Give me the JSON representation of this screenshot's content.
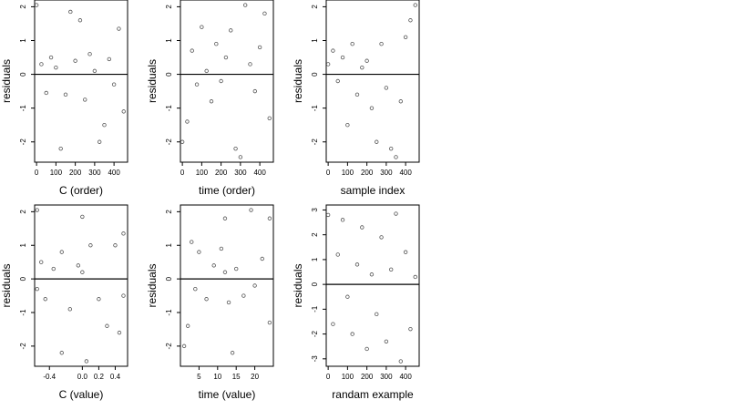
{
  "figure": {
    "background": "#ffffff",
    "point_color": "#555555",
    "zero_line_color": "#000000",
    "point_symbol": "open-circle"
  },
  "chart_data": [
    {
      "type": "scatter",
      "xlabel": "C (order)",
      "ylabel": "residuals",
      "xlim": [
        -10,
        470
      ],
      "ylim": [
        -2.6,
        2.2
      ],
      "xticks": [
        0,
        100,
        200,
        300,
        400
      ],
      "xtick_labels": [
        "0",
        "100",
        "200",
        "300",
        "400"
      ],
      "yticks": [
        -2,
        -1,
        0,
        1,
        2
      ],
      "ytick_labels": [
        "-2",
        "-1",
        "0",
        "1",
        "2"
      ],
      "hline": 0,
      "x": [
        0,
        25,
        50,
        75,
        100,
        125,
        150,
        175,
        200,
        225,
        250,
        275,
        300,
        325,
        350,
        375,
        400,
        425,
        450
      ],
      "y": [
        2.05,
        0.3,
        -0.55,
        0.5,
        0.2,
        -2.2,
        -0.6,
        1.85,
        0.4,
        1.6,
        -0.75,
        0.6,
        0.1,
        -2.0,
        -1.5,
        0.45,
        -0.3,
        1.35,
        -1.1
      ]
    },
    {
      "type": "scatter",
      "xlabel": "time (order)",
      "ylabel": "residuals",
      "xlim": [
        -10,
        470
      ],
      "ylim": [
        -2.6,
        2.2
      ],
      "xticks": [
        0,
        100,
        200,
        300,
        400
      ],
      "xtick_labels": [
        "0",
        "100",
        "200",
        "300",
        "400"
      ],
      "yticks": [
        -2,
        -1,
        0,
        1,
        2
      ],
      "ytick_labels": [
        "-2",
        "-1",
        "0",
        "1",
        "2"
      ],
      "hline": 0,
      "x": [
        0,
        25,
        50,
        75,
        100,
        125,
        150,
        175,
        200,
        225,
        250,
        275,
        300,
        325,
        350,
        375,
        400,
        425,
        450
      ],
      "y": [
        -2.0,
        -1.4,
        0.7,
        -0.3,
        1.4,
        0.1,
        -0.8,
        0.9,
        -0.2,
        0.5,
        1.3,
        -2.2,
        -2.45,
        2.05,
        0.3,
        -0.5,
        0.8,
        1.8,
        -1.3
      ]
    },
    {
      "type": "scatter",
      "xlabel": "sample index",
      "ylabel": "residuals",
      "xlim": [
        -10,
        470
      ],
      "ylim": [
        -2.6,
        2.2
      ],
      "xticks": [
        0,
        100,
        200,
        300,
        400
      ],
      "xtick_labels": [
        "0",
        "100",
        "200",
        "300",
        "400"
      ],
      "yticks": [
        -2,
        -1,
        0,
        1,
        2
      ],
      "ytick_labels": [
        "-2",
        "-1",
        "0",
        "1",
        "2"
      ],
      "hline": 0,
      "x": [
        0,
        25,
        50,
        75,
        100,
        125,
        150,
        175,
        200,
        225,
        250,
        275,
        300,
        325,
        350,
        375,
        400,
        425,
        450
      ],
      "y": [
        0.3,
        0.7,
        -0.2,
        0.5,
        -1.5,
        0.9,
        -0.6,
        0.2,
        0.4,
        -1.0,
        -2.0,
        0.9,
        -0.4,
        -2.2,
        -2.45,
        -0.8,
        1.1,
        1.6,
        2.05
      ]
    },
    {
      "type": "scatter",
      "xlabel": "C (value)",
      "ylabel": "residuals",
      "xlim": [
        -0.58,
        0.55
      ],
      "ylim": [
        -2.6,
        2.2
      ],
      "xticks": [
        -0.4,
        0.0,
        0.2,
        0.4
      ],
      "xtick_labels": [
        "-0.4",
        "0.0",
        "0.2",
        "0.4"
      ],
      "yticks": [
        -2,
        -1,
        0,
        1,
        2
      ],
      "ytick_labels": [
        "-2",
        "-1",
        "0",
        "1",
        "2"
      ],
      "hline": 0,
      "x": [
        -0.55,
        -0.5,
        -0.45,
        -0.35,
        -0.25,
        -0.15,
        -0.05,
        0.0,
        0.05,
        0.1,
        0.2,
        0.3,
        0.4,
        0.45,
        0.5,
        -0.55,
        0.0,
        0.5,
        -0.25
      ],
      "y": [
        2.05,
        0.5,
        -0.6,
        0.3,
        -2.2,
        -0.9,
        0.4,
        1.85,
        -2.45,
        1.0,
        -0.6,
        -1.4,
        1.0,
        -1.6,
        1.35,
        -0.3,
        0.2,
        -0.5,
        0.8
      ]
    },
    {
      "type": "scatter",
      "xlabel": "time (value)",
      "ylabel": "residuals",
      "xlim": [
        0,
        25
      ],
      "ylim": [
        -2.6,
        2.2
      ],
      "xticks": [
        5,
        10,
        15,
        20
      ],
      "xtick_labels": [
        "5",
        "10",
        "15",
        "20"
      ],
      "yticks": [
        -2,
        -1,
        0,
        1,
        2
      ],
      "ytick_labels": [
        "-2",
        "-1",
        "0",
        "1",
        "2"
      ],
      "hline": 0,
      "x": [
        1,
        2,
        3,
        4,
        5,
        7,
        9,
        11,
        12,
        13,
        14,
        15,
        17,
        19,
        20,
        22,
        24,
        12,
        24
      ],
      "y": [
        -2.0,
        -1.4,
        1.1,
        -0.3,
        0.8,
        -0.6,
        0.4,
        0.9,
        1.8,
        -0.7,
        -2.2,
        0.3,
        -0.5,
        2.05,
        -0.2,
        0.6,
        -1.3,
        0.2,
        1.8
      ]
    },
    {
      "type": "scatter",
      "xlabel": "randam example",
      "ylabel": "residuals",
      "xlim": [
        -10,
        470
      ],
      "ylim": [
        -3.3,
        3.2
      ],
      "xticks": [
        0,
        100,
        200,
        300,
        400
      ],
      "xtick_labels": [
        "0",
        "100",
        "200",
        "300",
        "400"
      ],
      "yticks": [
        -3,
        -2,
        -1,
        0,
        1,
        2,
        3
      ],
      "ytick_labels": [
        "-3",
        "-2",
        "-1",
        "0",
        "1",
        "2",
        "3"
      ],
      "hline": 0,
      "x": [
        0,
        25,
        50,
        75,
        100,
        125,
        150,
        175,
        200,
        225,
        250,
        275,
        300,
        325,
        350,
        375,
        400,
        425,
        450
      ],
      "y": [
        2.8,
        -1.6,
        1.2,
        2.6,
        -0.5,
        -2.0,
        0.8,
        2.3,
        -2.6,
        0.4,
        -1.2,
        1.9,
        -2.3,
        0.6,
        2.85,
        -3.1,
        1.3,
        -1.8,
        0.3
      ]
    }
  ]
}
